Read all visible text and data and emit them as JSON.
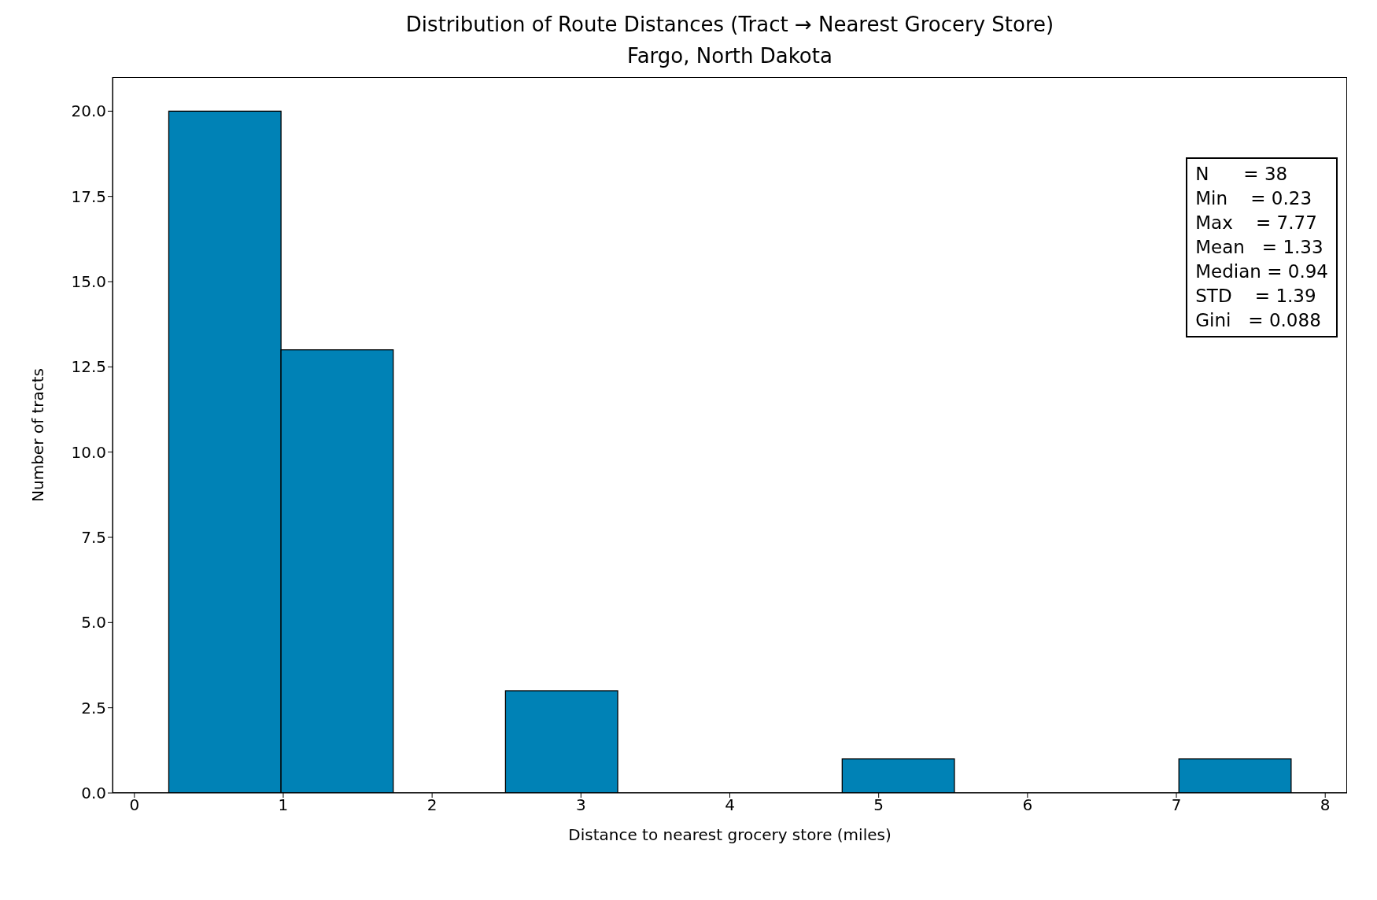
{
  "chart_data": {
    "type": "histogram",
    "title": "Distribution of Route Distances (Tract → Nearest Grocery Store)",
    "subtitle": "Fargo, North Dakota",
    "xlabel": "Distance to nearest grocery store (miles)",
    "ylabel": "Number of tracts",
    "bins": [
      0.23,
      0.984,
      1.738,
      2.492,
      3.246,
      4.0,
      4.754,
      5.508,
      6.262,
      7.016,
      7.77
    ],
    "values": [
      20,
      13,
      0,
      3,
      0,
      0,
      1,
      0,
      0,
      1
    ],
    "color": "#0082b6",
    "xlim": [
      -0.147,
      8.147
    ],
    "xticks": [
      0,
      1,
      2,
      3,
      4,
      5,
      6,
      7,
      8
    ],
    "ylim": [
      0,
      21
    ],
    "yticks": [
      {
        "value": 0,
        "label": "0.0"
      },
      {
        "value": 2.5,
        "label": "2.5"
      },
      {
        "value": 5,
        "label": "5.0"
      },
      {
        "value": 7.5,
        "label": "7.5"
      },
      {
        "value": 10,
        "label": "10.0"
      },
      {
        "value": 12.5,
        "label": "12.5"
      },
      {
        "value": 15,
        "label": "15.0"
      },
      {
        "value": 17.5,
        "label": "17.5"
      },
      {
        "value": 20,
        "label": "20.0"
      }
    ],
    "grid": false,
    "annotations": [
      "N      = 38",
      "Min    = 0.23",
      "Max    = 7.77",
      "Mean   = 1.33",
      "Median = 0.94",
      "STD    = 1.39",
      "Gini   = 0.088"
    ]
  }
}
